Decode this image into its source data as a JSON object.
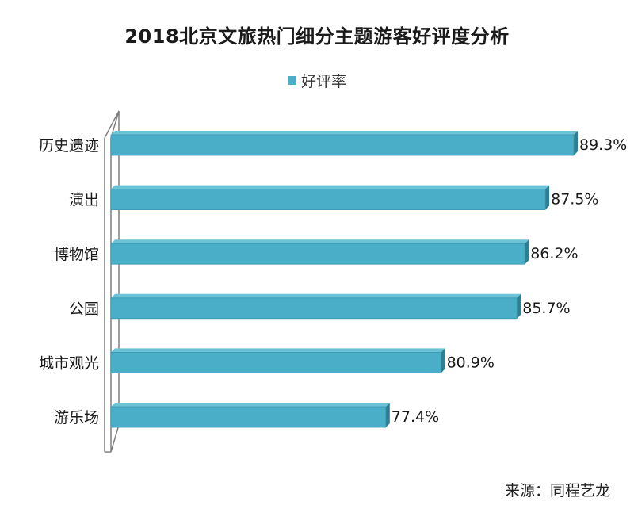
{
  "chart_data": {
    "type": "bar",
    "orientation": "horizontal",
    "title": "2018北京文旅热门细分主题游客好评度分析",
    "legend": "好评率",
    "categories": [
      "历史遗迹",
      "演出",
      "博物馆",
      "公园",
      "城市观光",
      "游乐场"
    ],
    "values": [
      89.3,
      87.5,
      86.2,
      85.7,
      80.9,
      77.4
    ],
    "value_labels": [
      "89.3%",
      "87.5%",
      "86.2%",
      "85.7%",
      "80.9%",
      "77.4%"
    ],
    "xlim": [
      60,
      90
    ],
    "color": "#4aaec8"
  },
  "footer": {
    "source": "来源：同程艺龙"
  }
}
